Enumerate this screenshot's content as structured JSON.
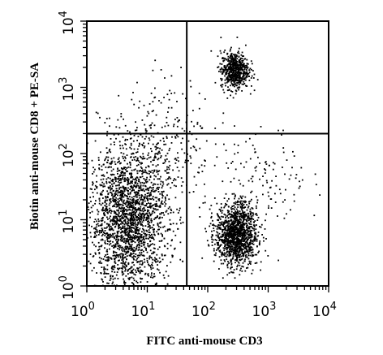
{
  "chart_data": {
    "type": "scatter",
    "title": "",
    "xlabel": "FITC anti-mouse CD3",
    "ylabel": "Biotin anti-mouse CD8 + PE-SA",
    "x_scale": "log",
    "y_scale": "log",
    "xlim": [
      1,
      10000
    ],
    "ylim": [
      1,
      10000
    ],
    "x_ticks": [
      {
        "base": "10",
        "exp": "0"
      },
      {
        "base": "10",
        "exp": "1"
      },
      {
        "base": "10",
        "exp": "2"
      },
      {
        "base": "10",
        "exp": "3"
      },
      {
        "base": "10",
        "exp": "4"
      }
    ],
    "y_ticks": [
      {
        "base": "10",
        "exp": "0"
      },
      {
        "base": "10",
        "exp": "1"
      },
      {
        "base": "10",
        "exp": "2"
      },
      {
        "base": "10",
        "exp": "3"
      },
      {
        "base": "10",
        "exp": "4"
      }
    ],
    "quadrant_gates": {
      "x": 45,
      "y": 200
    },
    "grid": false,
    "legend": "none",
    "point_color": "#000000",
    "populations": [
      {
        "center": [
          5,
          10
        ],
        "spread": [
          4.5,
          12
        ],
        "count": 2200
      },
      {
        "center": [
          300,
          6
        ],
        "spread": [
          2.2,
          3.0
        ],
        "count": 1300
      },
      {
        "center": [
          280,
          1800
        ],
        "spread": [
          1.7,
          1.9
        ],
        "count": 600
      },
      {
        "center": [
          20,
          150
        ],
        "spread": [
          6,
          10
        ],
        "count": 260
      },
      {
        "center": [
          900,
          40
        ],
        "spread": [
          5,
          6
        ],
        "count": 120
      }
    ]
  }
}
